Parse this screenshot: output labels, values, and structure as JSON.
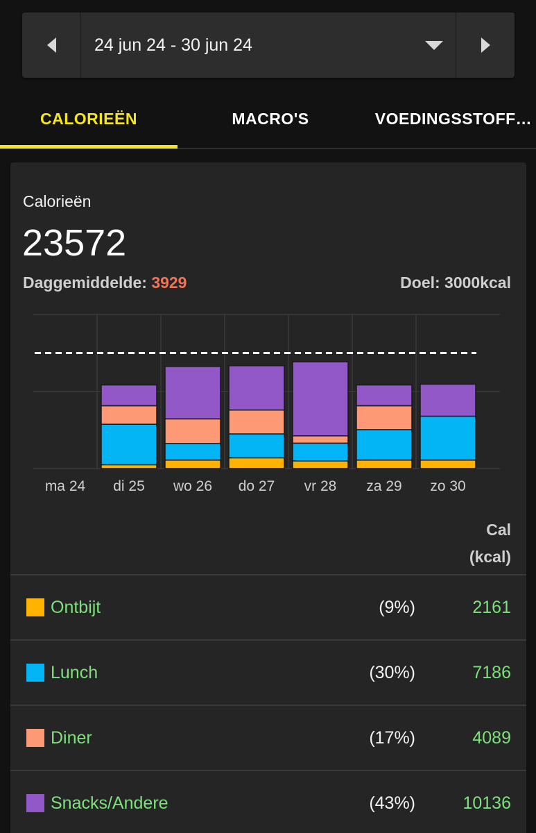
{
  "date_range": {
    "label": "24 jun 24 - 30 jun 24",
    "prev_icon": "chevron-left-icon",
    "next_icon": "chevron-right-icon",
    "dropdown_icon": "chevron-down-icon"
  },
  "tabs": [
    {
      "label": "CALORIEËN",
      "active": true
    },
    {
      "label": "MACRO'S",
      "active": false
    },
    {
      "label": "VOEDINGSSTOFF…",
      "active": false
    }
  ],
  "summary": {
    "title": "Calorieën",
    "total": "23572",
    "avg_label": "Daggemiddelde: ",
    "avg_value": "3929",
    "goal": "Doel: 3000kcal"
  },
  "chart_data": {
    "type": "bar",
    "stacked": true,
    "categories": [
      "ma 24",
      "di 25",
      "wo 26",
      "do 27",
      "vr 28",
      "za 29",
      "zo 30"
    ],
    "series": [
      {
        "name": "Ontbijt",
        "color": "#ffb300",
        "values": [
          0,
          100,
          220,
          280,
          200,
          220,
          220
        ]
      },
      {
        "name": "Lunch",
        "color": "#03b5f4",
        "values": [
          0,
          1050,
          430,
          620,
          460,
          790,
          1140
        ]
      },
      {
        "name": "Diner",
        "color": "#fd9a75",
        "values": [
          0,
          480,
          640,
          620,
          190,
          620,
          0
        ]
      },
      {
        "name": "Snacks/Andere",
        "color": "#9258c8",
        "values": [
          0,
          540,
          1360,
          1150,
          1920,
          540,
          830
        ]
      }
    ],
    "goal_line": 3000,
    "ylim": [
      0,
      4000
    ],
    "grid": true
  },
  "table": {
    "header_line1": "Cal",
    "header_line2": "(kcal)",
    "rows": [
      {
        "name": "Ontbijt",
        "pct": "(9%)",
        "value": "2161",
        "color": "#ffb300"
      },
      {
        "name": "Lunch",
        "pct": "(30%)",
        "value": "7186",
        "color": "#03b5f4"
      },
      {
        "name": "Diner",
        "pct": "(17%)",
        "value": "4089",
        "color": "#fd9a75"
      },
      {
        "name": "Snacks/Andere",
        "pct": "(43%)",
        "value": "10136",
        "color": "#9258c8"
      }
    ]
  }
}
